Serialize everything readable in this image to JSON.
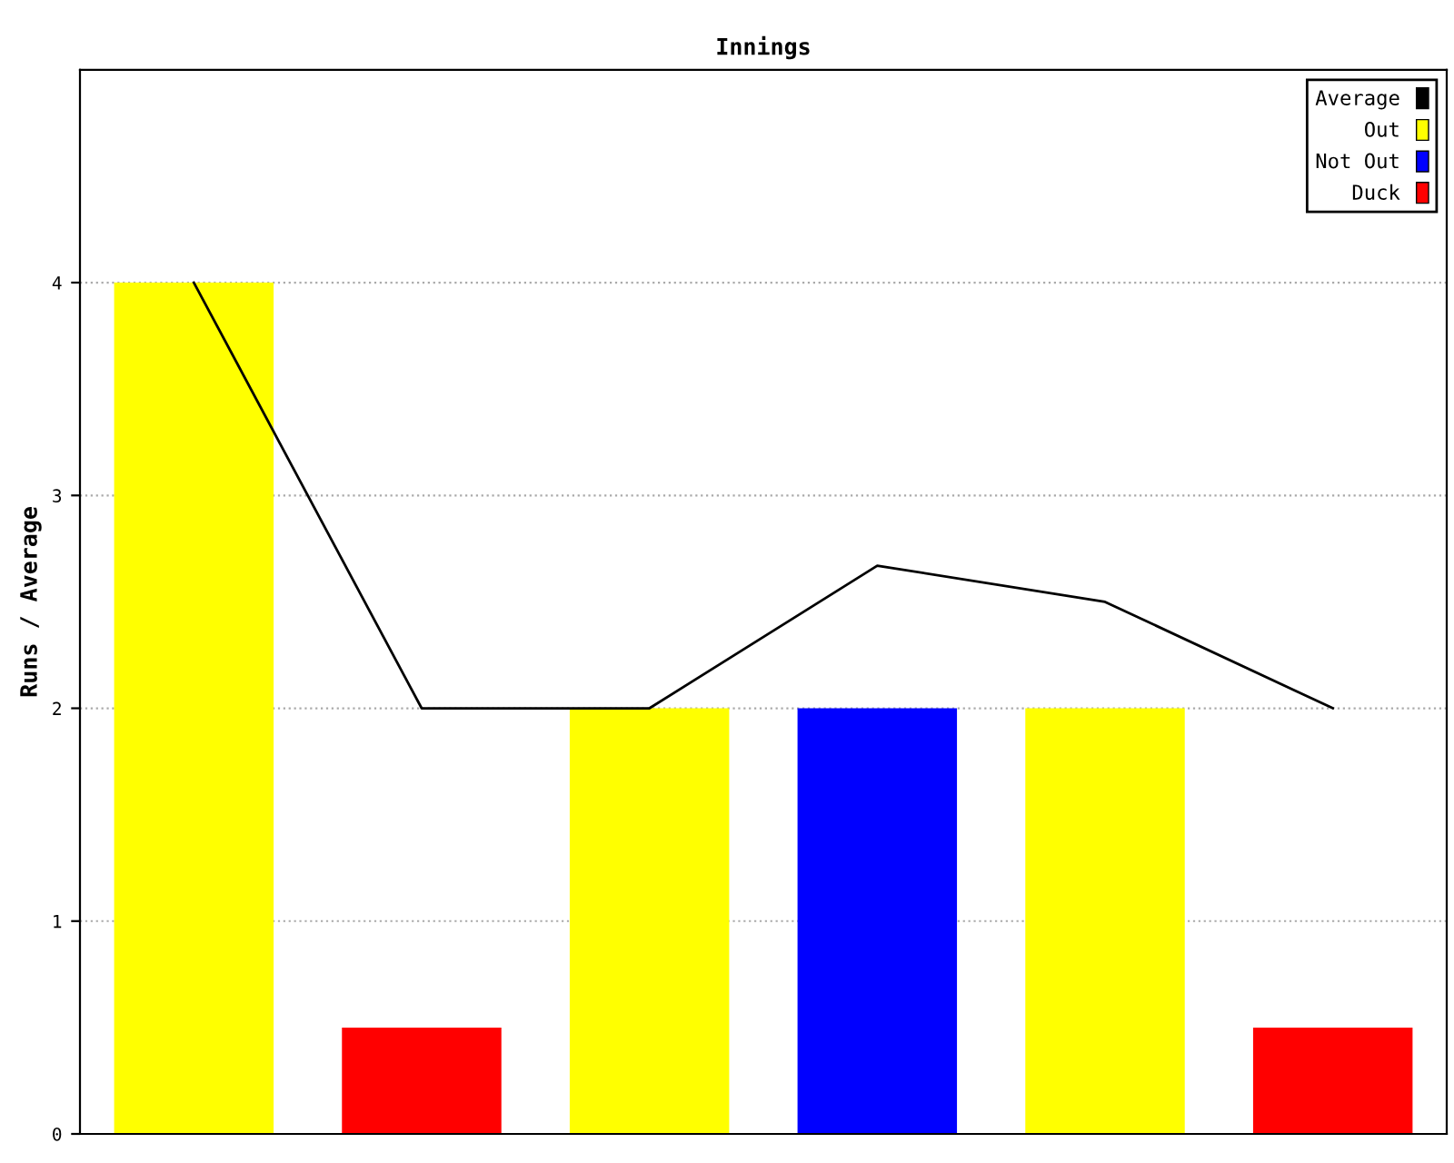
{
  "chart_data": {
    "type": "bar",
    "title": "Innings",
    "ylabel": "Runs / Average",
    "categories": [
      null,
      null,
      null,
      null,
      null,
      null
    ],
    "series": [
      {
        "name": "Average",
        "type": "line",
        "color": "#000000",
        "values": [
          4,
          2,
          2,
          2.67,
          2.5,
          2
        ]
      },
      {
        "name": "Out",
        "color": "#ffff00",
        "values": [
          4,
          null,
          2,
          null,
          2,
          null
        ]
      },
      {
        "name": "Not Out",
        "color": "#0000ff",
        "values": [
          null,
          null,
          null,
          2,
          null,
          null
        ]
      },
      {
        "name": "Duck",
        "color": "#ff0000",
        "values": [
          null,
          0.5,
          null,
          null,
          null,
          0.5
        ]
      }
    ],
    "ylim": [
      0,
      5
    ],
    "yticks": [
      0,
      1,
      2,
      3,
      4
    ],
    "grid": "y",
    "legend": "top right",
    "marker": "none",
    "line_style": "solid"
  }
}
